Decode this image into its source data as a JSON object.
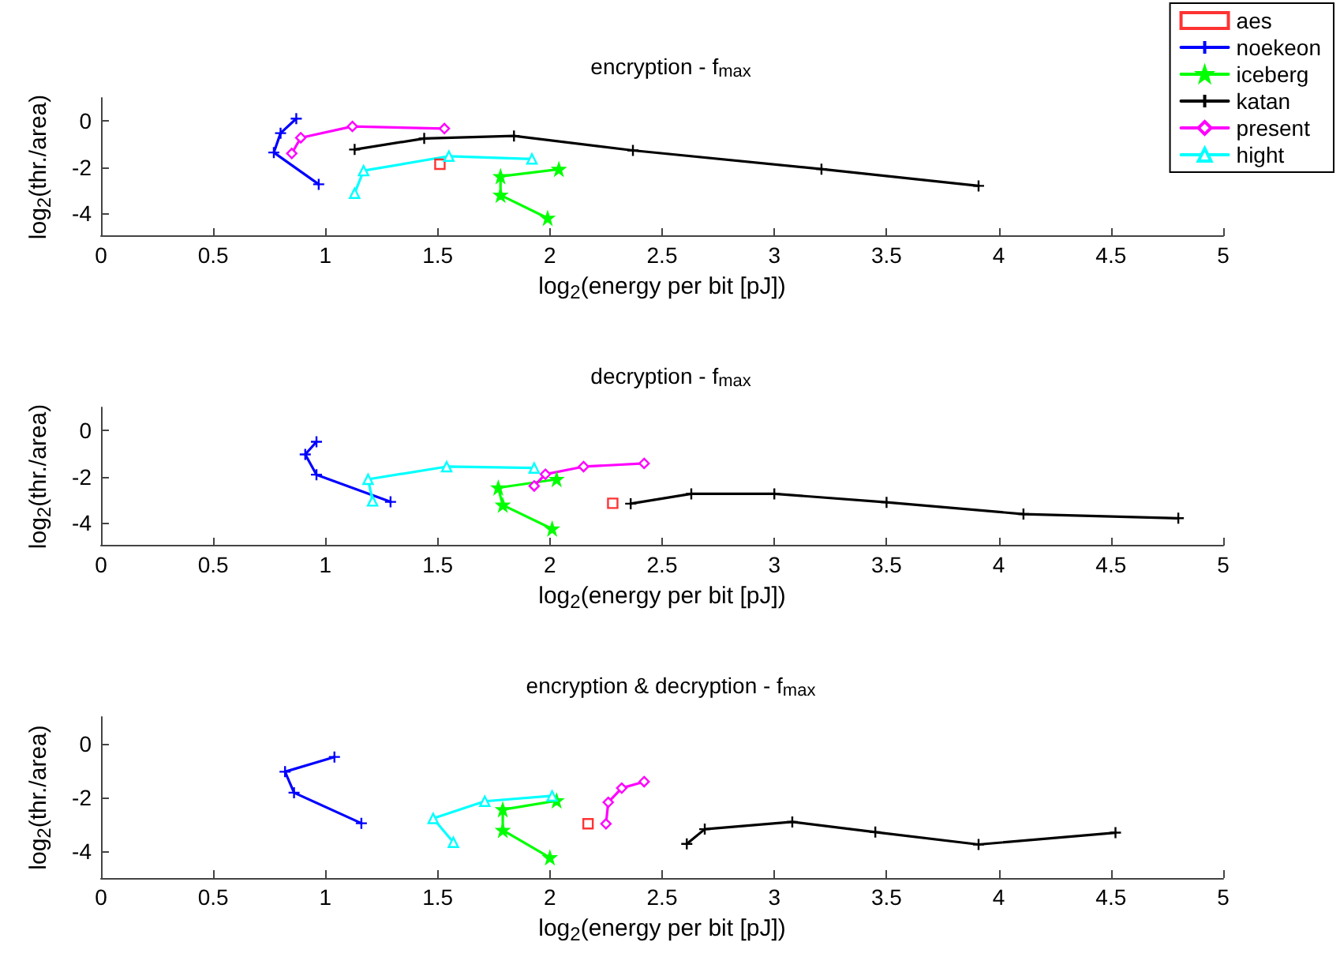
{
  "chart_data": [
    {
      "type": "line",
      "title": "encryption - f$_{max}$",
      "xlabel": "log$_{2}$(energy per bit [pJ])",
      "ylabel": "log$_{2}$(thr./area)",
      "xlim": [
        0,
        5
      ],
      "ylim": [
        -5,
        1
      ],
      "xticks": [
        0,
        0.5,
        1,
        1.5,
        2,
        2.5,
        3,
        3.5,
        4,
        4.5,
        5
      ],
      "yticks": [
        -4,
        -2,
        0
      ],
      "grid": false,
      "legend": "top right",
      "series": [
        {
          "name": "aes",
          "type": "scatter",
          "color": "#ff0000",
          "marker": "square",
          "x": [
            1.51
          ],
          "values": [
            -1.88
          ]
        },
        {
          "name": "noekeon",
          "color": "#0000ff",
          "marker": "cross",
          "x": [
            0.87,
            0.8,
            0.77,
            0.97
          ],
          "values": [
            0.1,
            -0.53,
            -1.37,
            -2.75
          ]
        },
        {
          "name": "iceberg",
          "color": "#00ff00",
          "marker": "star",
          "x": [
            2.04,
            1.78,
            1.78,
            1.99
          ],
          "values": [
            -2.1,
            -2.41,
            -3.22,
            -4.22
          ]
        },
        {
          "name": "katan",
          "color": "#000000",
          "marker": "cross",
          "x": [
            1.13,
            1.44,
            1.84,
            2.37,
            3.21,
            3.91
          ],
          "values": [
            -1.24,
            -0.76,
            -0.65,
            -1.28,
            -2.09,
            -2.82
          ]
        },
        {
          "name": "present",
          "color": "#ff00ff",
          "marker": "diamond",
          "x": [
            0.85,
            0.89,
            1.12,
            1.53
          ],
          "values": [
            -1.41,
            -0.73,
            -0.24,
            -0.33
          ]
        },
        {
          "name": "hight",
          "color": "#00ffff",
          "marker": "triangle",
          "x": [
            1.13,
            1.17,
            1.55,
            1.92
          ],
          "values": [
            -3.14,
            -2.16,
            -1.53,
            -1.65
          ]
        }
      ]
    },
    {
      "type": "line",
      "title": "decryption - f$_{max}$",
      "xlabel": "log$_{2}$(energy per bit [pJ])",
      "ylabel": "log$_{2}$(thr./area)",
      "xlim": [
        0,
        5
      ],
      "ylim": [
        -5,
        1
      ],
      "xticks": [
        0,
        0.5,
        1,
        1.5,
        2,
        2.5,
        3,
        3.5,
        4,
        4.5,
        5
      ],
      "yticks": [
        -4,
        -2,
        0
      ],
      "grid": false,
      "series": [
        {
          "type": "scatter",
          "color": "#ff0000",
          "marker": "square",
          "x": [
            2.28
          ],
          "values": [
            -3.16
          ]
        },
        {
          "color": "#0000ff",
          "marker": "cross",
          "x": [
            0.96,
            0.91,
            0.96,
            1.29
          ],
          "values": [
            -0.49,
            -1.04,
            -1.92,
            -3.1
          ]
        },
        {
          "color": "#00ff00",
          "marker": "star",
          "x": [
            2.03,
            1.77,
            1.79,
            2.01
          ],
          "values": [
            -2.12,
            -2.49,
            -3.24,
            -4.27
          ]
        },
        {
          "color": "#000000",
          "marker": "cross",
          "x": [
            2.36,
            2.63,
            3.0,
            3.5,
            4.11,
            4.8
          ],
          "values": [
            -3.18,
            -2.75,
            -2.75,
            -3.12,
            -3.63,
            -3.81
          ]
        },
        {
          "color": "#ff00ff",
          "marker": "diamond",
          "x": [
            1.93,
            1.98,
            2.15,
            2.42
          ],
          "values": [
            -2.41,
            -1.9,
            -1.57,
            -1.43
          ]
        },
        {
          "color": "#00ffff",
          "marker": "triangle",
          "x": [
            1.21,
            1.19,
            1.54,
            1.93
          ],
          "values": [
            -3.06,
            -2.12,
            -1.57,
            -1.63
          ]
        }
      ]
    },
    {
      "type": "line",
      "title": "encryption & decryption - f$_{max}$",
      "xlabel": "log$_{2}$(energy per bit [pJ])",
      "ylabel": "log$_{2}$(thr./area)",
      "xlim": [
        0,
        5
      ],
      "ylim": [
        -5,
        1
      ],
      "xticks": [
        0,
        0.5,
        1,
        1.5,
        2,
        2.5,
        3,
        3.5,
        4,
        4.5,
        5
      ],
      "yticks": [
        -4,
        -2,
        0
      ],
      "grid": false,
      "series": [
        {
          "type": "scatter",
          "color": "#ff0000",
          "marker": "square",
          "x": [
            2.17
          ],
          "values": [
            -2.98
          ]
        },
        {
          "color": "#0000ff",
          "marker": "cross",
          "x": [
            1.04,
            0.82,
            0.86,
            1.16
          ],
          "values": [
            -0.49,
            -1.04,
            -1.82,
            -2.96
          ]
        },
        {
          "color": "#00ff00",
          "marker": "star",
          "x": [
            2.03,
            1.79,
            1.79,
            2.0
          ],
          "values": [
            -2.12,
            -2.45,
            -3.22,
            -4.24
          ]
        },
        {
          "color": "#000000",
          "marker": "cross",
          "x": [
            2.61,
            2.69,
            3.08,
            3.45,
            3.91,
            4.52
          ],
          "values": [
            -3.73,
            -3.18,
            -2.91,
            -3.29,
            -3.75,
            -3.31
          ]
        },
        {
          "color": "#ff00ff",
          "marker": "diamond",
          "x": [
            2.25,
            2.26,
            2.32,
            2.42
          ],
          "values": [
            -2.98,
            -2.18,
            -1.65,
            -1.41
          ]
        },
        {
          "color": "#00ffff",
          "marker": "triangle",
          "x": [
            1.57,
            1.48,
            1.71,
            2.01
          ],
          "values": [
            -3.67,
            -2.78,
            -2.14,
            -1.94
          ]
        }
      ]
    }
  ]
}
